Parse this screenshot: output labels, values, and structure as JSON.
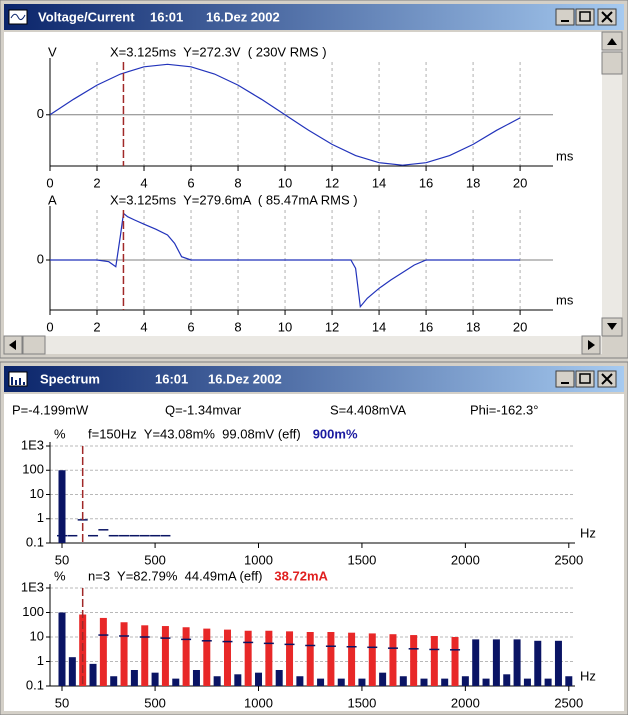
{
  "voltage_window": {
    "title": "Voltage/Current",
    "time": "16:01",
    "date": "16.Dez 2002"
  },
  "spectrum_window": {
    "title": "Spectrum",
    "time": "16:01",
    "date": "16.Dez 2002",
    "power": {
      "p": "P=-4.199mW",
      "q": "Q=-1.34mvar",
      "s": "S=4.408mVA",
      "phi": "Phi=-162.3°"
    }
  },
  "chart_data": [
    {
      "type": "line",
      "y_label": "V",
      "cursor_label": "X=3.125ms  Y=272.3V  ( 230V RMS )",
      "x_unit": "ms",
      "x": [
        0,
        1,
        2,
        3,
        4,
        5,
        6,
        7,
        8,
        9,
        10,
        11,
        12,
        13,
        14,
        15,
        16,
        17,
        18,
        19,
        20
      ],
      "values": [
        0,
        100,
        191,
        263,
        309,
        325,
        309,
        263,
        191,
        100,
        0,
        -100,
        -191,
        -263,
        -309,
        -325,
        -309,
        -263,
        -191,
        -100,
        -20
      ],
      "color": "#2233bb",
      "xlim": [
        0,
        21.4
      ],
      "ylim": [
        -330,
        340
      ],
      "xticks": [
        0,
        2,
        4,
        6,
        8,
        10,
        12,
        14,
        16,
        18,
        20
      ],
      "yticks": [
        0
      ],
      "cursor_x": 3.125,
      "cursor_color": "#a02828",
      "grid": true
    },
    {
      "type": "line",
      "y_label": "A",
      "cursor_label": "X=3.125ms  Y=279.6mA  ( 85.47mA RMS )",
      "x_unit": "ms",
      "x": [
        0,
        1,
        2,
        2.5,
        2.8,
        3,
        3.125,
        3.3,
        3.6,
        4,
        4.5,
        5,
        5.3,
        5.6,
        6,
        8,
        10,
        12,
        12.8,
        13,
        13.2,
        13.5,
        14,
        14.5,
        15,
        15.5,
        16,
        18,
        20
      ],
      "values": [
        0,
        0,
        0,
        -10,
        -40,
        150,
        279.6,
        260,
        240,
        215,
        185,
        150,
        100,
        20,
        0,
        0,
        0,
        0,
        0,
        -50,
        -280,
        -230,
        -170,
        -120,
        -75,
        -30,
        0,
        0,
        0
      ],
      "color": "#2233bb",
      "xlim": [
        0,
        21.4
      ],
      "ylim": [
        -300,
        300
      ],
      "xticks": [
        0,
        2,
        4,
        6,
        8,
        10,
        12,
        14,
        16,
        18,
        20
      ],
      "yticks": [
        0
      ],
      "cursor_x": 3.125,
      "cursor_color": "#a02828",
      "grid": true
    },
    {
      "type": "bar",
      "y_label": "%",
      "cursor_label": "f=150Hz  Y=43.08m%  99.08mV (eff)",
      "highlight_label": "900m%",
      "highlight_color": "#1a1aa0",
      "x_unit": "Hz",
      "log_scale": true,
      "x": [
        50,
        100,
        150,
        200,
        250,
        300,
        350,
        400,
        450,
        500,
        550
      ],
      "values": [
        100,
        null,
        null,
        null,
        null,
        null,
        null,
        null,
        null,
        null,
        null
      ],
      "colors": [
        "#0a1464",
        "#0a1464",
        "#0a1464",
        "#0a1464",
        "#0a1464",
        "#0a1464",
        "#0a1464",
        "#0a1464",
        "#0a1464",
        "#0a1464",
        "#0a1464"
      ],
      "limits": [
        0.2,
        0.2,
        0.9,
        0.2,
        0.35,
        0.2,
        0.2,
        0.2,
        0.2,
        0.2,
        0.2
      ],
      "limit_color": "#0a1464",
      "xlim": [
        -8,
        2530
      ],
      "ylim": [
        0.1,
        1000
      ],
      "xticks": [
        50,
        500,
        1000,
        1500,
        2000,
        2500
      ],
      "yticks": [
        {
          "value": 1000,
          "label": "1E3"
        },
        100,
        10,
        1,
        0.1
      ],
      "cursor_x": 150,
      "cursor_color": "#a02828",
      "grid": true
    },
    {
      "type": "bar",
      "y_label": "%",
      "cursor_label": "n=3  Y=82.79%  44.49mA (eff)",
      "highlight_label": "38.72mA",
      "highlight_color": "#e02020",
      "x_unit": "Hz",
      "log_scale": true,
      "x": [
        50,
        100,
        150,
        200,
        250,
        300,
        350,
        400,
        450,
        500,
        550,
        600,
        650,
        700,
        750,
        800,
        850,
        900,
        950,
        1000,
        1050,
        1100,
        1150,
        1200,
        1250,
        1300,
        1350,
        1400,
        1450,
        1500,
        1550,
        1600,
        1650,
        1700,
        1750,
        1800,
        1850,
        1900,
        1950,
        2000,
        2050,
        2100,
        2150,
        2200,
        2250,
        2300,
        2350,
        2400,
        2450,
        2500
      ],
      "values": [
        100,
        1.5,
        82.79,
        0.8,
        60,
        0.25,
        40,
        0.45,
        30,
        0.35,
        28,
        0.2,
        25,
        0.45,
        22,
        0.25,
        20,
        0.3,
        18,
        0.35,
        18,
        0.45,
        17,
        0.25,
        16,
        0.2,
        16,
        0.2,
        15,
        0.2,
        14,
        0.35,
        13,
        0.25,
        12,
        0.2,
        11,
        0.2,
        10,
        0.25,
        8,
        0.2,
        8,
        0.3,
        8,
        0.2,
        7,
        0.2,
        7,
        0.25
      ],
      "colors": [
        "#0a1464",
        "#0a1464",
        "#e82828",
        "#0a1464",
        "#e82828",
        "#0a1464",
        "#e82828",
        "#0a1464",
        "#e82828",
        "#0a1464",
        "#e82828",
        "#0a1464",
        "#e82828",
        "#0a1464",
        "#e82828",
        "#0a1464",
        "#e82828",
        "#0a1464",
        "#e82828",
        "#0a1464",
        "#e82828",
        "#0a1464",
        "#e82828",
        "#0a1464",
        "#e82828",
        "#0a1464",
        "#e82828",
        "#0a1464",
        "#e82828",
        "#0a1464",
        "#e82828",
        "#0a1464",
        "#e82828",
        "#0a1464",
        "#e82828",
        "#0a1464",
        "#e82828",
        "#0a1464",
        "#e82828",
        "#0a1464",
        "#0a1464",
        "#0a1464",
        "#0a1464",
        "#0a1464",
        "#0a1464",
        "#0a1464",
        "#0a1464",
        "#0a1464",
        "#0a1464",
        "#0a1464"
      ],
      "limits": [
        null,
        null,
        null,
        null,
        12,
        null,
        11,
        null,
        10,
        null,
        9,
        null,
        8,
        null,
        7,
        null,
        6.5,
        null,
        6,
        null,
        5.5,
        null,
        5,
        null,
        4.5,
        null,
        4.2,
        null,
        4,
        null,
        3.8,
        null,
        3.5,
        null,
        3.3,
        null,
        3.1,
        null,
        3,
        null,
        null,
        null,
        null,
        null,
        null,
        null,
        null,
        null,
        null,
        null
      ],
      "limit_color": "#0a1464",
      "xlim": [
        -8,
        2530
      ],
      "ylim": [
        0.1,
        1000
      ],
      "xticks": [
        50,
        500,
        1000,
        1500,
        2000,
        2500
      ],
      "yticks": [
        {
          "value": 1000,
          "label": "1E3"
        },
        100,
        10,
        1,
        0.1
      ],
      "cursor_x": 150,
      "cursor_color": "#a02828",
      "grid": true
    }
  ]
}
